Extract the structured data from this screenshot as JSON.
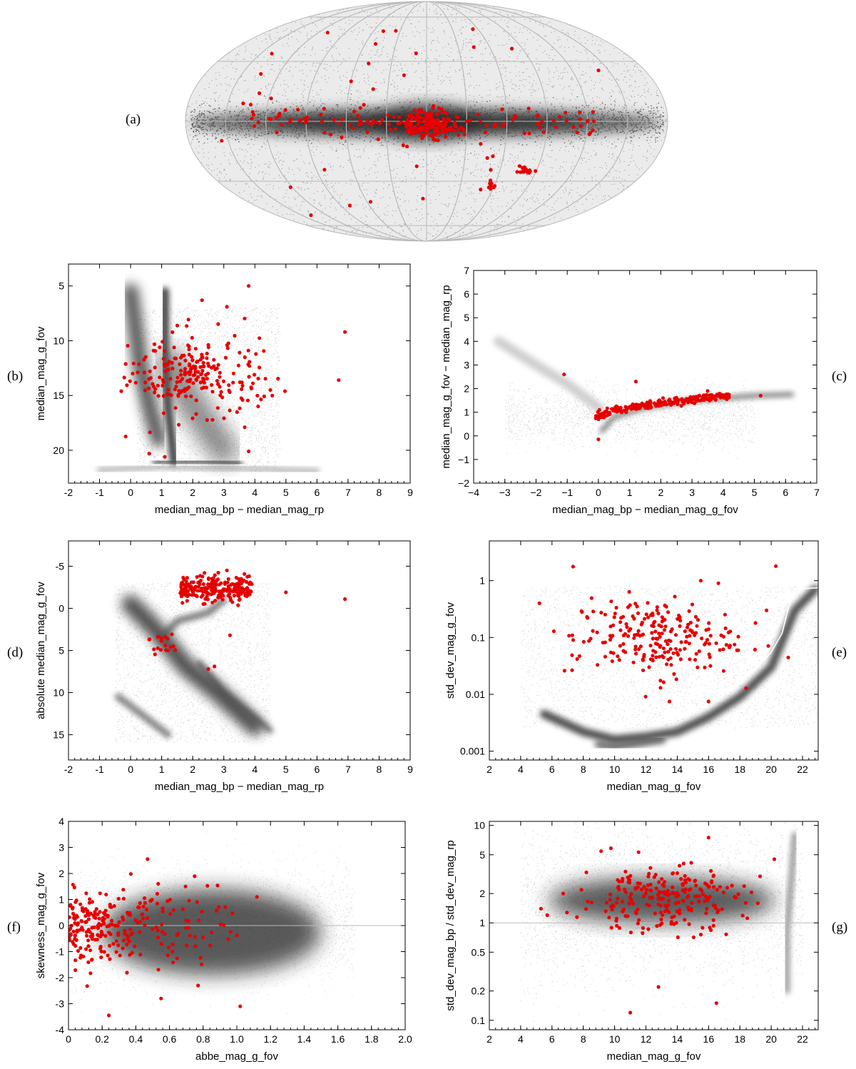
{
  "colors": {
    "highlight": "#e60000",
    "background_density": "#6e6e6e",
    "grid": "#b9b9b9",
    "trend": "#ffffff"
  },
  "panel_a": {
    "label": "(a)",
    "description": "all-sky map",
    "red_clusters": [
      "galactic centre",
      "LMC",
      "SMC"
    ]
  },
  "chart_data": [
    {
      "id": "b",
      "label": "(b)",
      "type": "scatter",
      "xlabel": "median_mag_bp − median_mag_rp",
      "ylabel": "median_mag_g_fov",
      "xlim": [
        -2,
        9
      ],
      "ylim": [
        23,
        3
      ],
      "xticks": [
        "-2",
        "-1",
        "0",
        "1",
        "2",
        "3",
        "4",
        "5",
        "6",
        "7",
        "8",
        "9"
      ],
      "yticks": [
        "5",
        "10",
        "15",
        "20"
      ],
      "highlight_points": [
        [
          0.6,
          20.3
        ],
        [
          1.1,
          20.6
        ],
        [
          3.8,
          20.1
        ],
        [
          2.3,
          6.3
        ],
        [
          3.1,
          6.9
        ],
        [
          3.8,
          5.0
        ],
        [
          -0.3,
          14.6
        ],
        [
          4.5,
          14.5
        ],
        [
          6.7,
          13.6
        ],
        [
          6.9,
          9.2
        ]
      ]
    },
    {
      "id": "c",
      "label": "(c)",
      "type": "scatter",
      "xlabel": "median_mag_bp − median_mag_g_fov",
      "ylabel": "median_mag_g_fov − median_mag_rp",
      "xlim": [
        -4,
        7
      ],
      "ylim": [
        -2,
        7
      ],
      "xticks": [
        "−4",
        "−3",
        "−2",
        "−1",
        "0",
        "1",
        "2",
        "3",
        "4",
        "5",
        "6",
        "7"
      ],
      "yticks": [
        "−2",
        "−1",
        "0",
        "1",
        "2",
        "3",
        "4",
        "5",
        "6",
        "7"
      ],
      "highlight_points": [
        [
          -1.1,
          2.6
        ],
        [
          1.2,
          2.3
        ],
        [
          5.2,
          1.7
        ],
        [
          0.0,
          -0.15
        ],
        [
          4.0,
          1.7
        ],
        [
          3.5,
          1.9
        ]
      ]
    },
    {
      "id": "d",
      "label": "(d)",
      "type": "scatter",
      "xlabel": "median_mag_bp − median_mag_rp",
      "ylabel": "absolute median_mag_g_fov",
      "xlim": [
        -2,
        9
      ],
      "ylim": [
        18,
        -8
      ],
      "xticks": [
        "-2",
        "-1",
        "0",
        "1",
        "2",
        "3",
        "4",
        "5",
        "6",
        "7",
        "8",
        "9"
      ],
      "yticks": [
        "-5",
        "0",
        "5",
        "10",
        "15"
      ],
      "highlight_points": [
        [
          3.1,
          -4.5
        ],
        [
          6.9,
          -1.1
        ],
        [
          5.0,
          -1.9
        ],
        [
          2.5,
          7.2
        ],
        [
          2.7,
          6.9
        ],
        [
          3.2,
          3.2
        ],
        [
          0.6,
          3.7
        ]
      ]
    },
    {
      "id": "e",
      "label": "(e)",
      "type": "scatter",
      "xlabel": "median_mag_g_fov",
      "ylabel": "std_dev_mag_g_fov",
      "xlim": [
        2,
        23
      ],
      "ylim": [
        0.0007,
        5
      ],
      "yscale": "log",
      "xticks": [
        "2",
        "4",
        "6",
        "8",
        "10",
        "12",
        "14",
        "16",
        "18",
        "20",
        "22"
      ],
      "yticks": [
        "0.001",
        "0.01",
        "0.1",
        "1"
      ],
      "trend_line": {
        "x": [
          5.9,
          7.5,
          9.0,
          10.2,
          10.8,
          11.4,
          12.0,
          12.6,
          13.2,
          14.0,
          15.0,
          16.0,
          17.0,
          18.0,
          19.0,
          20.0,
          20.7,
          21.3,
          22.0,
          23.0
        ],
        "y": [
          0.0075,
          0.0074,
          0.0068,
          0.0062,
          0.0066,
          0.0058,
          0.0068,
          0.0055,
          0.0053,
          0.005,
          0.0053,
          0.0065,
          0.0095,
          0.016,
          0.028,
          0.055,
          0.12,
          0.55,
          0.72,
          0.75
        ]
      },
      "highlight_points": [
        [
          5.2,
          0.4
        ],
        [
          15.5,
          1.0
        ],
        [
          20.3,
          1.8
        ],
        [
          19.7,
          0.3
        ],
        [
          6.8,
          0.026
        ],
        [
          13.5,
          0.0075
        ],
        [
          16.0,
          0.0075
        ]
      ]
    },
    {
      "id": "f",
      "label": "(f)",
      "type": "scatter",
      "xlabel": "abbe_mag_g_fov",
      "ylabel": "skewness_mag_g_fov",
      "xlim": [
        0,
        2.0
      ],
      "ylim": [
        -4,
        4
      ],
      "xticks": [
        "0",
        "0.2",
        "0.4",
        "0.6",
        "0.8",
        "1.0",
        "1.2",
        "1.4",
        "1.6",
        "1.8",
        "2.0"
      ],
      "yticks": [
        "-4",
        "-3",
        "-2",
        "-1",
        "0",
        "1",
        "2",
        "3",
        "4"
      ],
      "reference_line_y": 0,
      "highlight_points": [
        [
          0.47,
          2.55
        ],
        [
          0.24,
          -3.45
        ],
        [
          1.02,
          -3.1
        ],
        [
          0.55,
          -2.8
        ],
        [
          0.77,
          -2.3
        ],
        [
          1.12,
          1.1
        ]
      ]
    },
    {
      "id": "g",
      "label": "(g)",
      "type": "scatter",
      "xlabel": "median_mag_g_fov",
      "ylabel": "std_dev_mag_bp / std_dev_mag_rp",
      "xlim": [
        2,
        23
      ],
      "ylim": [
        0.08,
        11
      ],
      "yscale": "log",
      "xticks": [
        "2",
        "4",
        "6",
        "8",
        "10",
        "12",
        "14",
        "16",
        "18",
        "20",
        "22"
      ],
      "yticks": [
        "0.1",
        "0.2",
        "0.5",
        "1",
        "2",
        "5",
        "10"
      ],
      "reference_line_y": 1,
      "highlight_points": [
        [
          11.0,
          0.12
        ],
        [
          16.5,
          0.15
        ],
        [
          12.8,
          0.22
        ],
        [
          16.0,
          7.5
        ],
        [
          5.3,
          1.4
        ],
        [
          5.7,
          1.2
        ],
        [
          20.2,
          4.5
        ]
      ]
    }
  ]
}
